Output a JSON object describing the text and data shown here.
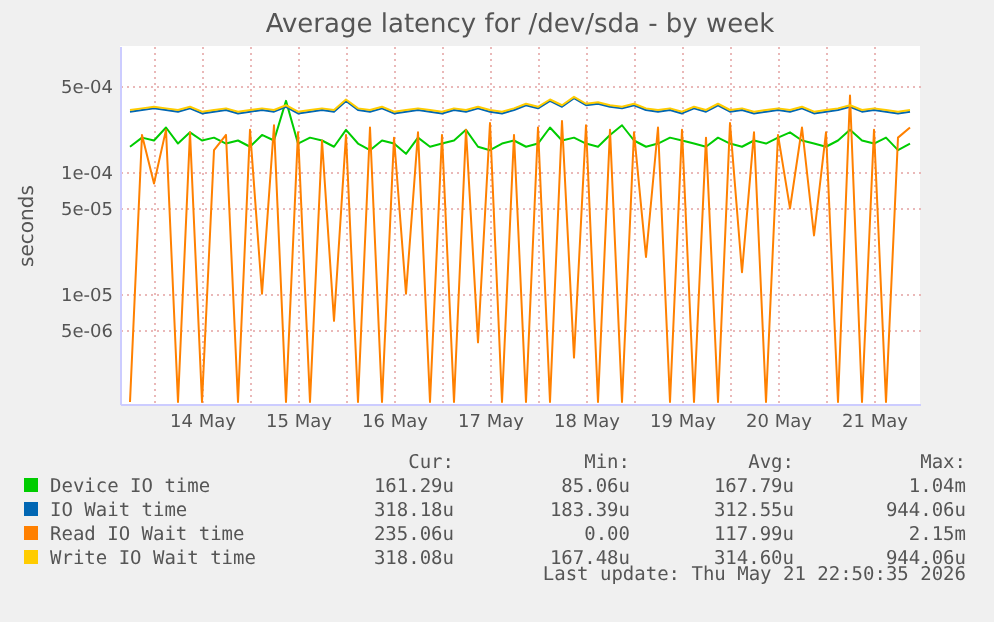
{
  "chart_data": {
    "type": "line",
    "title": "Average latency for /dev/sda - by week",
    "ylabel": "seconds",
    "log": "y",
    "grid": true,
    "legend": "bottom",
    "marker": "none",
    "ylim": [
      1.25e-06,
      0.00107
    ],
    "yticks": [
      {
        "value": 5e-06,
        "label": "5e-06"
      },
      {
        "value": 1e-05,
        "label": "1e-05"
      },
      {
        "value": 5e-05,
        "label": "5e-05"
      },
      {
        "value": 0.0001,
        "label": "1e-04"
      },
      {
        "value": 0.0005,
        "label": "5e-04"
      }
    ],
    "xlim": [
      "2026-05-13T15:30",
      "2026-05-21T23:30"
    ],
    "xticks": [
      {
        "value": "2026-05-14T12:00",
        "label": "14 May"
      },
      {
        "value": "2026-05-15T12:00",
        "label": "15 May"
      },
      {
        "value": "2026-05-16T12:00",
        "label": "16 May"
      },
      {
        "value": "2026-05-17T12:00",
        "label": "17 May"
      },
      {
        "value": "2026-05-18T12:00",
        "label": "18 May"
      },
      {
        "value": "2026-05-19T12:00",
        "label": "19 May"
      },
      {
        "value": "2026-05-20T12:00",
        "label": "20 May"
      },
      {
        "value": "2026-05-21T12:00",
        "label": "21 May"
      },
      {
        "value": "2026-05-14T00:00",
        "label": null
      },
      {
        "value": "2026-05-15T00:00",
        "label": null
      },
      {
        "value": "2026-05-16T00:00",
        "label": null
      },
      {
        "value": "2026-05-17T00:00",
        "label": null
      },
      {
        "value": "2026-05-18T00:00",
        "label": null
      },
      {
        "value": "2026-05-19T00:00",
        "label": null
      },
      {
        "value": "2026-05-20T00:00",
        "label": null
      },
      {
        "value": "2026-05-21T00:00",
        "label": null
      }
    ],
    "x": [
      "2026-05-13T18:00",
      "2026-05-13T21:00",
      "2026-05-14T00:00",
      "2026-05-14T03:00",
      "2026-05-14T06:00",
      "2026-05-14T09:00",
      "2026-05-14T12:00",
      "2026-05-14T15:00",
      "2026-05-14T18:00",
      "2026-05-14T21:00",
      "2026-05-15T00:00",
      "2026-05-15T03:00",
      "2026-05-15T06:00",
      "2026-05-15T09:00",
      "2026-05-15T12:00",
      "2026-05-15T15:00",
      "2026-05-15T18:00",
      "2026-05-15T21:00",
      "2026-05-16T00:00",
      "2026-05-16T03:00",
      "2026-05-16T06:00",
      "2026-05-16T09:00",
      "2026-05-16T12:00",
      "2026-05-16T15:00",
      "2026-05-16T18:00",
      "2026-05-16T21:00",
      "2026-05-17T00:00",
      "2026-05-17T03:00",
      "2026-05-17T06:00",
      "2026-05-17T09:00",
      "2026-05-17T12:00",
      "2026-05-17T15:00",
      "2026-05-17T18:00",
      "2026-05-17T21:00",
      "2026-05-18T00:00",
      "2026-05-18T03:00",
      "2026-05-18T06:00",
      "2026-05-18T09:00",
      "2026-05-18T12:00",
      "2026-05-18T15:00",
      "2026-05-18T18:00",
      "2026-05-18T21:00",
      "2026-05-19T00:00",
      "2026-05-19T03:00",
      "2026-05-19T06:00",
      "2026-05-19T09:00",
      "2026-05-19T12:00",
      "2026-05-19T15:00",
      "2026-05-19T18:00",
      "2026-05-19T21:00",
      "2026-05-20T00:00",
      "2026-05-20T03:00",
      "2026-05-20T06:00",
      "2026-05-20T09:00",
      "2026-05-20T12:00",
      "2026-05-20T15:00",
      "2026-05-20T18:00",
      "2026-05-20T21:00",
      "2026-05-21T00:00",
      "2026-05-21T03:00",
      "2026-05-21T06:00",
      "2026-05-21T09:00",
      "2026-05-21T12:00",
      "2026-05-21T15:00",
      "2026-05-21T18:00",
      "2026-05-21T21:00"
    ],
    "series": [
      {
        "name": "Device IO time",
        "color": "#00cc00",
        "values": [
          0.00016,
          0.00019,
          0.00018,
          0.00023,
          0.00017,
          0.00021,
          0.00018,
          0.00019,
          0.00017,
          0.00018,
          0.00016,
          0.0002,
          0.00018,
          0.00038,
          0.00017,
          0.00019,
          0.00018,
          0.00016,
          0.00022,
          0.00017,
          0.00015,
          0.00018,
          0.00017,
          0.00014,
          0.00019,
          0.00016,
          0.00017,
          0.00018,
          0.00022,
          0.00016,
          0.00015,
          0.00017,
          0.00018,
          0.00016,
          0.00017,
          0.00023,
          0.00018,
          0.00019,
          0.00017,
          0.00016,
          0.0002,
          0.00024,
          0.00018,
          0.00016,
          0.00017,
          0.00019,
          0.00018,
          0.00017,
          0.00016,
          0.00019,
          0.00017,
          0.00016,
          0.00018,
          0.00017,
          0.00019,
          0.00021,
          0.00018,
          0.00017,
          0.00016,
          0.00018,
          0.00022,
          0.00018,
          0.00017,
          0.00019,
          0.00015,
          0.00017
        ]
      },
      {
        "name": "IO Wait time",
        "color": "#0066b3",
        "values": [
          0.00031,
          0.00032,
          0.00033,
          0.00032,
          0.00031,
          0.00033,
          0.0003,
          0.00031,
          0.00032,
          0.0003,
          0.00031,
          0.00032,
          0.00031,
          0.00034,
          0.0003,
          0.00031,
          0.00032,
          0.00031,
          0.00038,
          0.00032,
          0.00031,
          0.00033,
          0.0003,
          0.00031,
          0.00032,
          0.00031,
          0.0003,
          0.00032,
          0.00031,
          0.00033,
          0.00031,
          0.0003,
          0.00032,
          0.00035,
          0.00033,
          0.00038,
          0.00034,
          0.0004,
          0.00035,
          0.00036,
          0.00034,
          0.00033,
          0.00035,
          0.00032,
          0.00031,
          0.00032,
          0.0003,
          0.00033,
          0.00031,
          0.00035,
          0.00031,
          0.00032,
          0.0003,
          0.00031,
          0.00032,
          0.00031,
          0.00033,
          0.0003,
          0.00031,
          0.00032,
          0.00034,
          0.00031,
          0.00032,
          0.00031,
          0.0003,
          0.00031
        ]
      },
      {
        "name": "Read IO Wait time",
        "color": "#ff8000",
        "values": [
          1.3e-06,
          0.0002,
          8e-05,
          0.00022,
          1.3e-06,
          0.00021,
          1.3e-06,
          0.00015,
          0.0002,
          1.3e-06,
          0.00022,
          1e-05,
          0.00024,
          1.3e-06,
          0.00021,
          1.3e-06,
          0.00018,
          6e-06,
          0.0002,
          1.3e-06,
          0.00023,
          1.3e-06,
          0.00019,
          1e-05,
          0.00021,
          1.3e-06,
          0.0002,
          1.3e-06,
          0.00022,
          4e-06,
          0.00025,
          1.3e-06,
          0.0002,
          1.3e-06,
          0.00023,
          1.3e-06,
          0.00026,
          3e-06,
          0.00024,
          1.3e-06,
          0.00022,
          1.3e-06,
          0.00021,
          2e-05,
          0.00023,
          1.3e-06,
          0.00022,
          1.3e-06,
          0.00019,
          1.3e-06,
          0.00025,
          1.5e-05,
          0.00021,
          1.3e-06,
          0.0002,
          5e-05,
          0.00023,
          3e-05,
          0.00021,
          1.3e-06,
          0.00042,
          1.3e-06,
          0.00022,
          1.3e-06,
          0.00019,
          0.00023
        ]
      },
      {
        "name": "Write IO Wait time",
        "color": "#ffcc00",
        "values": [
          0.00032,
          0.00033,
          0.00034,
          0.00033,
          0.00032,
          0.00034,
          0.00031,
          0.00032,
          0.00033,
          0.00031,
          0.00032,
          0.00033,
          0.00032,
          0.00035,
          0.00031,
          0.00032,
          0.00033,
          0.00032,
          0.00039,
          0.00033,
          0.00032,
          0.00034,
          0.00031,
          0.00032,
          0.00033,
          0.00032,
          0.00031,
          0.00033,
          0.00032,
          0.00034,
          0.00032,
          0.00031,
          0.00033,
          0.00036,
          0.00034,
          0.00039,
          0.00035,
          0.00041,
          0.00036,
          0.00037,
          0.00035,
          0.00034,
          0.00036,
          0.00033,
          0.00032,
          0.00033,
          0.00031,
          0.00034,
          0.00032,
          0.00036,
          0.00032,
          0.00033,
          0.00031,
          0.00032,
          0.00033,
          0.00032,
          0.00034,
          0.00031,
          0.00032,
          0.00033,
          0.00035,
          0.00032,
          0.00033,
          0.00032,
          0.00031,
          0.00032
        ]
      }
    ],
    "annotations": [
      "Cur:",
      "Min:",
      "Avg:",
      "Max:",
      "161.29u",
      "85.06u",
      "167.79u",
      "1.04m",
      "318.18u",
      "183.39u",
      "312.55u",
      "944.06u",
      "235.06u",
      "0.00",
      "117.99u",
      "2.15m",
      "318.08u",
      "167.48u",
      "314.60u",
      "944.06u",
      "Last update: Thu May 21 22:50:35 2026"
    ]
  }
}
